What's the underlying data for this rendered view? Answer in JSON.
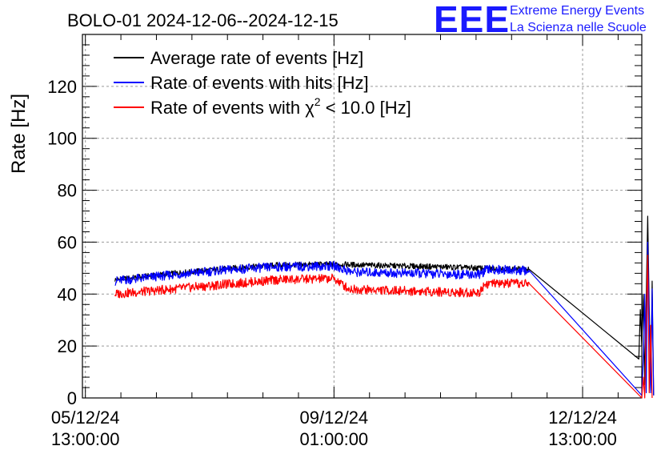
{
  "chart_data": {
    "type": "line",
    "title": "BOLO-01 2024-12-06--2024-12-15",
    "xlabel": "",
    "ylabel": "Rate [Hz]",
    "ylim": [
      0,
      140
    ],
    "yticks": [
      0,
      20,
      40,
      60,
      80,
      100,
      120
    ],
    "xlim_hours": [
      -1,
      188
    ],
    "xticks": [
      {
        "hours": 0,
        "date": "05/12/24",
        "time": "13:00:00"
      },
      {
        "hours": 84,
        "date": "09/12/24",
        "time": "01:00:00"
      },
      {
        "hours": 168,
        "date": "12/12/24",
        "time": "13:00:00"
      }
    ],
    "grid": true,
    "legend_position": "top-left",
    "series": [
      {
        "name": "Average rate of events [Hz]",
        "color": "#000000",
        "points": [
          [
            10,
            45.5
          ],
          [
            30,
            48
          ],
          [
            50,
            50
          ],
          [
            65,
            51.2
          ],
          [
            84,
            51.5
          ],
          [
            100,
            51
          ],
          [
            120,
            50.5
          ],
          [
            133,
            50
          ],
          [
            150,
            49.5
          ],
          [
            187,
            15
          ],
          [
            187.5,
            34
          ],
          [
            188,
            20
          ],
          [
            188.5,
            40
          ],
          [
            189,
            5
          ],
          [
            190,
            70
          ],
          [
            190.5,
            35
          ],
          [
            191,
            3
          ],
          [
            191.5,
            45
          ],
          [
            192,
            1
          ]
        ]
      },
      {
        "name": "Rate of events with hits [Hz]",
        "color": "#0000ff",
        "points": [
          [
            10,
            45
          ],
          [
            30,
            47.5
          ],
          [
            50,
            49.5
          ],
          [
            65,
            50.5
          ],
          [
            84,
            50.8
          ],
          [
            90,
            48.5
          ],
          [
            110,
            48
          ],
          [
            133,
            47.5
          ],
          [
            136,
            49.5
          ],
          [
            150,
            49
          ],
          [
            188,
            1
          ],
          [
            188.5,
            15
          ],
          [
            189,
            40
          ],
          [
            189.5,
            2
          ],
          [
            190,
            60
          ],
          [
            190.5,
            30
          ],
          [
            191,
            2
          ],
          [
            191.5,
            42
          ],
          [
            192,
            1
          ]
        ]
      },
      {
        "name": "Rate of events with χ² < 10.0 [Hz]",
        "color": "#ff0000",
        "points": [
          [
            10,
            40
          ],
          [
            30,
            42
          ],
          [
            50,
            44
          ],
          [
            65,
            45.5
          ],
          [
            84,
            46
          ],
          [
            89,
            42
          ],
          [
            100,
            41.5
          ],
          [
            116,
            41
          ],
          [
            133,
            40.5
          ],
          [
            135,
            44
          ],
          [
            150,
            44
          ],
          [
            188,
            0
          ],
          [
            188.5,
            8
          ],
          [
            189,
            0
          ],
          [
            189.5,
            30
          ],
          [
            190,
            55
          ],
          [
            190.5,
            2
          ],
          [
            191,
            28
          ],
          [
            191.5,
            0
          ]
        ]
      }
    ]
  },
  "legend_items": [
    {
      "label_pre": "Rate of events with ",
      "chi": "χ",
      "sup": "2",
      "label_post": " < 10.0 [Hz]"
    }
  ],
  "logo": {
    "mark": "EEE",
    "line1": "Extreme Energy Events",
    "line2": "La Scienza nelle Scuole",
    "color": "#1a1aff"
  }
}
